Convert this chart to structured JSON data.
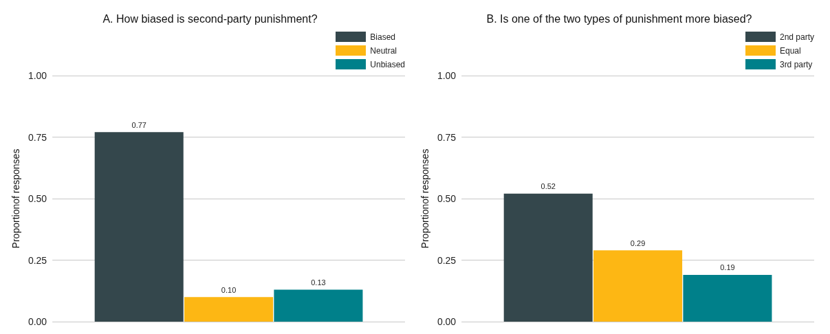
{
  "chart_data": [
    {
      "type": "bar",
      "title": "A. How biased is second-party punishment?",
      "ylabel": "Proportionof responses",
      "categories": [
        null
      ],
      "series": [
        {
          "name": "Biased",
          "color": "#34474c",
          "values": [
            0.77
          ],
          "value_labels": [
            "0.77"
          ]
        },
        {
          "name": "Neutral",
          "color": "#fdb714",
          "values": [
            0.1
          ],
          "value_labels": [
            "0.10"
          ]
        },
        {
          "name": "Unbiased",
          "color": "#00808a",
          "values": [
            0.13
          ],
          "value_labels": [
            "0.13"
          ]
        }
      ],
      "ylim": [
        0,
        1
      ],
      "yticks": [
        {
          "value": 0,
          "label": "0.00"
        },
        {
          "value": 0.25,
          "label": "0.25"
        },
        {
          "value": 0.5,
          "label": "0.50"
        },
        {
          "value": 0.75,
          "label": "0.75"
        },
        {
          "value": 1,
          "label": "1.00"
        }
      ],
      "grid": "y",
      "legend": "top right",
      "tick_labels": "y"
    },
    {
      "type": "bar",
      "title": "B. Is one of the two types of punishment more biased?",
      "ylabel": "Proportionof responses",
      "categories": [
        null
      ],
      "series": [
        {
          "name": "2nd party",
          "color": "#34474c",
          "values": [
            0.52
          ],
          "value_labels": [
            "0.52"
          ]
        },
        {
          "name": "Equal",
          "color": "#fdb714",
          "values": [
            0.29
          ],
          "value_labels": [
            "0.29"
          ]
        },
        {
          "name": "3rd party",
          "color": "#00808a",
          "values": [
            0.19
          ],
          "value_labels": [
            "0.19"
          ]
        }
      ],
      "ylim": [
        0,
        1
      ],
      "yticks": [
        {
          "value": 0,
          "label": "0.00"
        },
        {
          "value": 0.25,
          "label": "0.25"
        },
        {
          "value": 0.5,
          "label": "0.50"
        },
        {
          "value": 0.75,
          "label": "0.75"
        },
        {
          "value": 1,
          "label": "1.00"
        }
      ],
      "grid": "y",
      "legend": "top right",
      "tick_labels": "y"
    }
  ]
}
